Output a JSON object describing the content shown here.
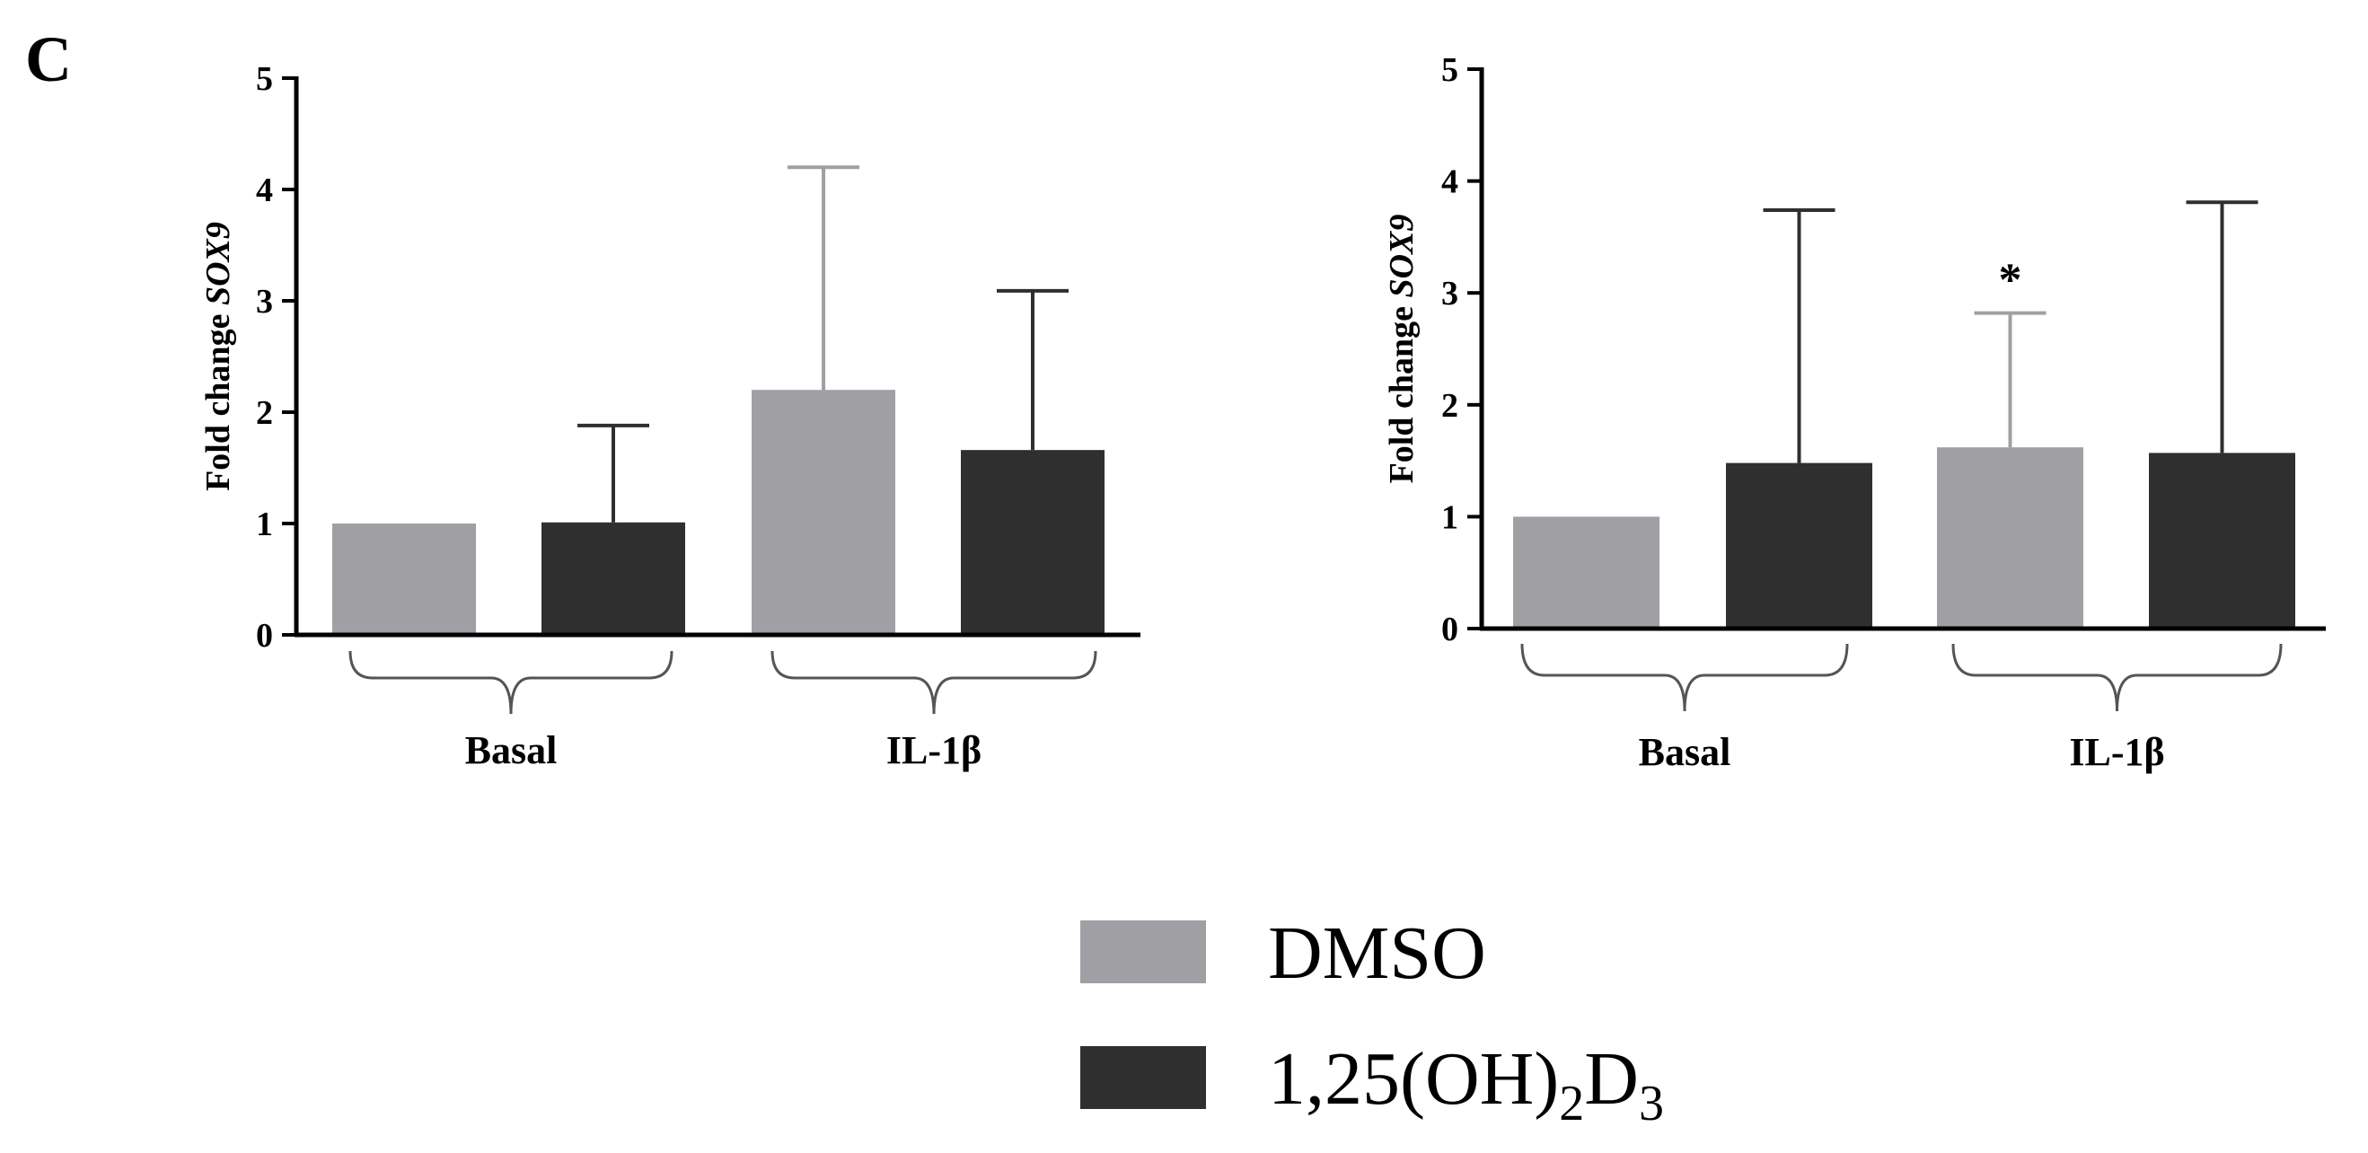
{
  "panel_label": "C",
  "colors": {
    "dmso": "#a09fa4",
    "vitd": "#2f2f2f",
    "axis": "#000000",
    "bracket": "#555555"
  },
  "legend": {
    "items": [
      {
        "key": "dmso",
        "label": "DMSO"
      },
      {
        "key": "vitd",
        "label": "1,25(OH)",
        "sub1": "2",
        "mid": "D",
        "sub2": "3"
      }
    ]
  },
  "chart_data": [
    {
      "type": "bar",
      "ylabel_prefix": "Fold change ",
      "ylabel_gene": "SOX9",
      "ylim": [
        0,
        5
      ],
      "yticks": [
        "0",
        "1",
        "2",
        "3",
        "4",
        "5"
      ],
      "groups": [
        "Basal",
        "IL-1β"
      ],
      "series": [
        {
          "name": "DMSO",
          "key": "dmso",
          "values": [
            1.0,
            2.2
          ],
          "errors": [
            0,
            2.0
          ]
        },
        {
          "name": "1,25(OH)2D3",
          "key": "vitd",
          "values": [
            1.01,
            1.66
          ],
          "errors": [
            0.87,
            1.43
          ]
        }
      ],
      "annotations": []
    },
    {
      "type": "bar",
      "ylabel_prefix": "Fold change ",
      "ylabel_gene": "SOX9",
      "ylim": [
        0,
        5
      ],
      "yticks": [
        "0",
        "1",
        "2",
        "3",
        "4",
        "5"
      ],
      "groups": [
        "Basal",
        "IL-1β"
      ],
      "series": [
        {
          "name": "DMSO",
          "key": "dmso",
          "values": [
            1.0,
            1.62
          ],
          "errors": [
            0,
            1.2
          ]
        },
        {
          "name": "1,25(OH)2D3",
          "key": "vitd",
          "values": [
            1.48,
            1.57
          ],
          "errors": [
            2.26,
            2.24
          ]
        }
      ],
      "annotations": [
        {
          "text": "*",
          "group": 1,
          "series": 0
        }
      ]
    }
  ]
}
